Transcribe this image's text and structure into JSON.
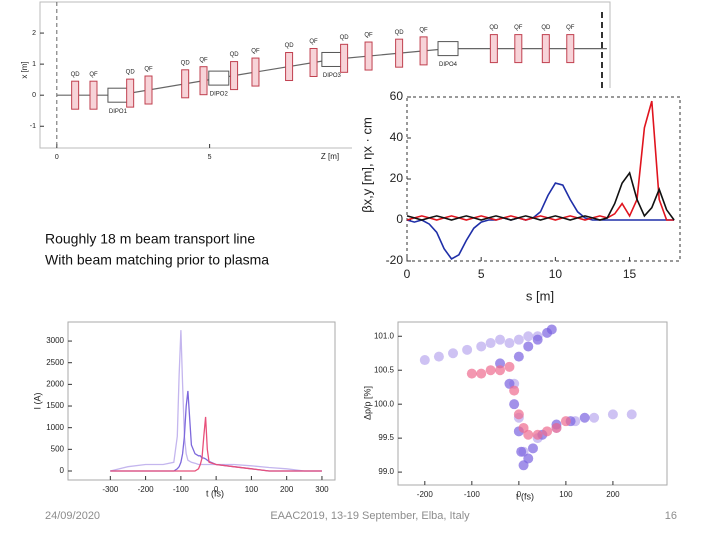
{
  "slide": {
    "text": [
      "Roughly 18 m beam transport line",
      "With beam matching prior to plasma"
    ],
    "footer": {
      "date": "24/09/2020",
      "event": "EAAC2019, 13-19 September, Elba, Italy",
      "page": "16"
    }
  },
  "chart_data": [
    {
      "type": "beamline",
      "xlabel": "Z [m]",
      "ylabel": "x [m]",
      "xlim": [
        -0.55,
        18.1
      ],
      "ylim": [
        -1.7,
        3.0
      ],
      "xticks": [
        0,
        5
      ],
      "yticks": [
        -1,
        0,
        1,
        2
      ],
      "x": [
        0,
        2,
        5.3,
        9,
        12.8,
        18
      ],
      "y": [
        0,
        0,
        0.55,
        1.15,
        1.5,
        1.5
      ],
      "color": "#666666",
      "magnets": [
        {
          "label": "QD",
          "z": 0.6
        },
        {
          "label": "QF",
          "z": 1.2
        },
        {
          "label": "DIPO1",
          "z": 2.0
        },
        {
          "label": "QD",
          "z": 2.4
        },
        {
          "label": "QF",
          "z": 3.0
        },
        {
          "label": "QD",
          "z": 4.2
        },
        {
          "label": "QF",
          "z": 4.8
        },
        {
          "label": "DIPO2",
          "z": 5.3
        },
        {
          "label": "QD",
          "z": 5.8
        },
        {
          "label": "QF",
          "z": 6.5
        },
        {
          "label": "QD",
          "z": 7.6
        },
        {
          "label": "QF",
          "z": 8.4
        },
        {
          "label": "DIPO3",
          "z": 9.0
        },
        {
          "label": "QD",
          "z": 9.4
        },
        {
          "label": "QF",
          "z": 10.2
        },
        {
          "label": "QD",
          "z": 11.2
        },
        {
          "label": "QF",
          "z": 12.0
        },
        {
          "label": "DIPO4",
          "z": 12.8
        },
        {
          "label": "QD",
          "z": 14.3
        },
        {
          "label": "QF",
          "z": 15.1
        },
        {
          "label": "QD",
          "z": 16.0
        },
        {
          "label": "QF",
          "z": 16.8
        }
      ]
    },
    {
      "type": "line",
      "xlabel": "s [m]",
      "ylabel": "βx,y [m], ηx · cm",
      "xlim": [
        0,
        18.4
      ],
      "ylim": [
        -20,
        60
      ],
      "xticks": [
        0,
        5,
        10,
        15
      ],
      "yticks": [
        -20,
        0,
        20,
        40,
        60
      ],
      "x": [
        0,
        0.5,
        1,
        1.5,
        2,
        2.5,
        3,
        3.5,
        4,
        4.5,
        5,
        5.5,
        6,
        6.5,
        7,
        7.5,
        8,
        8.5,
        9,
        9.5,
        10,
        10.5,
        11,
        11.5,
        12,
        12.5,
        13,
        13.5,
        14,
        14.5,
        15,
        15.5,
        16,
        16.5,
        17,
        17.5,
        18
      ],
      "series": [
        {
          "color": "#1f2fa8",
          "values": [
            0,
            -1,
            0,
            -2,
            -6,
            -14,
            -19,
            -17,
            -10,
            -4,
            -1,
            0,
            0,
            1,
            0,
            1,
            0,
            1,
            4,
            12,
            18,
            17,
            10,
            4,
            1,
            0,
            0,
            0,
            0,
            0,
            0,
            0,
            0,
            0,
            0,
            0,
            0
          ]
        },
        {
          "color": "#e0141e",
          "values": [
            0,
            1,
            2,
            1,
            0,
            1,
            2,
            1,
            0,
            1,
            2,
            1,
            0,
            1,
            2,
            1,
            0,
            1,
            2,
            1,
            0,
            1,
            2,
            1,
            0,
            1,
            2,
            1,
            3,
            8,
            2,
            10,
            45,
            58,
            10,
            0,
            0
          ]
        },
        {
          "color": "#111111",
          "values": [
            2,
            1,
            0,
            1,
            2,
            1,
            0,
            1,
            2,
            1,
            0,
            1,
            2,
            1,
            0,
            1,
            2,
            1,
            0,
            1,
            2,
            1,
            0,
            1,
            2,
            1,
            0,
            1,
            8,
            18,
            23,
            10,
            2,
            6,
            15,
            5,
            0
          ]
        }
      ]
    },
    {
      "type": "line",
      "xlabel": "t (fs)",
      "ylabel": "I (A)",
      "xlim": [
        -420,
        337
      ],
      "ylim": [
        -208,
        3440
      ],
      "xticks": [
        -300,
        -200,
        -100,
        0,
        100,
        200,
        300
      ],
      "yticks": [
        0,
        500,
        1000,
        1500,
        2000,
        2500,
        3000
      ],
      "x": [
        -300,
        -250,
        -200,
        -150,
        -120,
        -110,
        -105,
        -100,
        -95,
        -90,
        -85,
        -80,
        -70,
        -60,
        -50,
        -45,
        -40,
        -35,
        -30,
        -25,
        -20,
        0,
        50,
        100,
        150,
        200,
        250,
        300
      ],
      "series": [
        {
          "color": "#c4b6ee",
          "values": [
            0,
            100,
            150,
            150,
            200,
            800,
            2200,
            3250,
            2000,
            800,
            400,
            250,
            200,
            180,
            150,
            150,
            150,
            150,
            150,
            150,
            150,
            150,
            150,
            120,
            80,
            50,
            0,
            0
          ]
        },
        {
          "color": "#7d68dc",
          "values": [
            0,
            0,
            0,
            0,
            0,
            50,
            100,
            200,
            400,
            800,
            1500,
            1850,
            600,
            400,
            350,
            350,
            300,
            300,
            280,
            250,
            220,
            150,
            100,
            50,
            0,
            0,
            0,
            0
          ]
        },
        {
          "color": "#e8507a",
          "values": [
            0,
            0,
            0,
            0,
            0,
            0,
            0,
            0,
            0,
            0,
            0,
            0,
            0,
            0,
            50,
            150,
            300,
            800,
            1250,
            500,
            200,
            150,
            100,
            50,
            0,
            0,
            0,
            0
          ]
        }
      ]
    },
    {
      "type": "scatter",
      "xlabel": "t (fs)",
      "ylabel": "Δp/p [%]",
      "xlim": [
        -257,
        315
      ],
      "ylim": [
        98.81,
        101.21
      ],
      "xticks": [
        -200,
        -100,
        0,
        100,
        200
      ],
      "yticks": [
        {
          "value": 99.0,
          "label": "99.0"
        },
        99.5,
        {
          "value": 100.0,
          "label": "100.0"
        },
        100.5,
        {
          "value": 101.0,
          "label": "101.0"
        }
      ],
      "series": [
        {
          "color": "#b9a8ee",
          "x": [
            -200,
            -170,
            -140,
            -110,
            -80,
            -60,
            -40,
            -20,
            0,
            20,
            40,
            -10,
            0,
            10,
            40,
            80,
            120,
            160,
            200,
            240
          ],
          "y": [
            100.65,
            100.7,
            100.75,
            100.8,
            100.85,
            100.9,
            100.95,
            100.9,
            100.95,
            101.0,
            101.0,
            100.3,
            99.8,
            99.3,
            99.5,
            99.65,
            99.75,
            99.8,
            99.85,
            99.85
          ]
        },
        {
          "color": "#7a63e0",
          "x": [
            -40,
            -20,
            -10,
            0,
            5,
            10,
            20,
            30,
            50,
            80,
            110,
            140,
            0,
            20,
            40,
            60,
            70
          ],
          "y": [
            100.6,
            100.3,
            100.0,
            99.6,
            99.3,
            99.1,
            99.2,
            99.35,
            99.55,
            99.7,
            99.75,
            99.8,
            100.7,
            100.85,
            100.95,
            101.05,
            101.1
          ]
        },
        {
          "color": "#ee6b8f",
          "x": [
            -100,
            -80,
            -60,
            -40,
            -20,
            -10,
            0,
            10,
            20,
            40,
            60,
            80,
            100
          ],
          "y": [
            100.45,
            100.45,
            100.5,
            100.5,
            100.55,
            100.2,
            99.85,
            99.65,
            99.55,
            99.55,
            99.6,
            99.65,
            99.75
          ]
        }
      ]
    }
  ]
}
